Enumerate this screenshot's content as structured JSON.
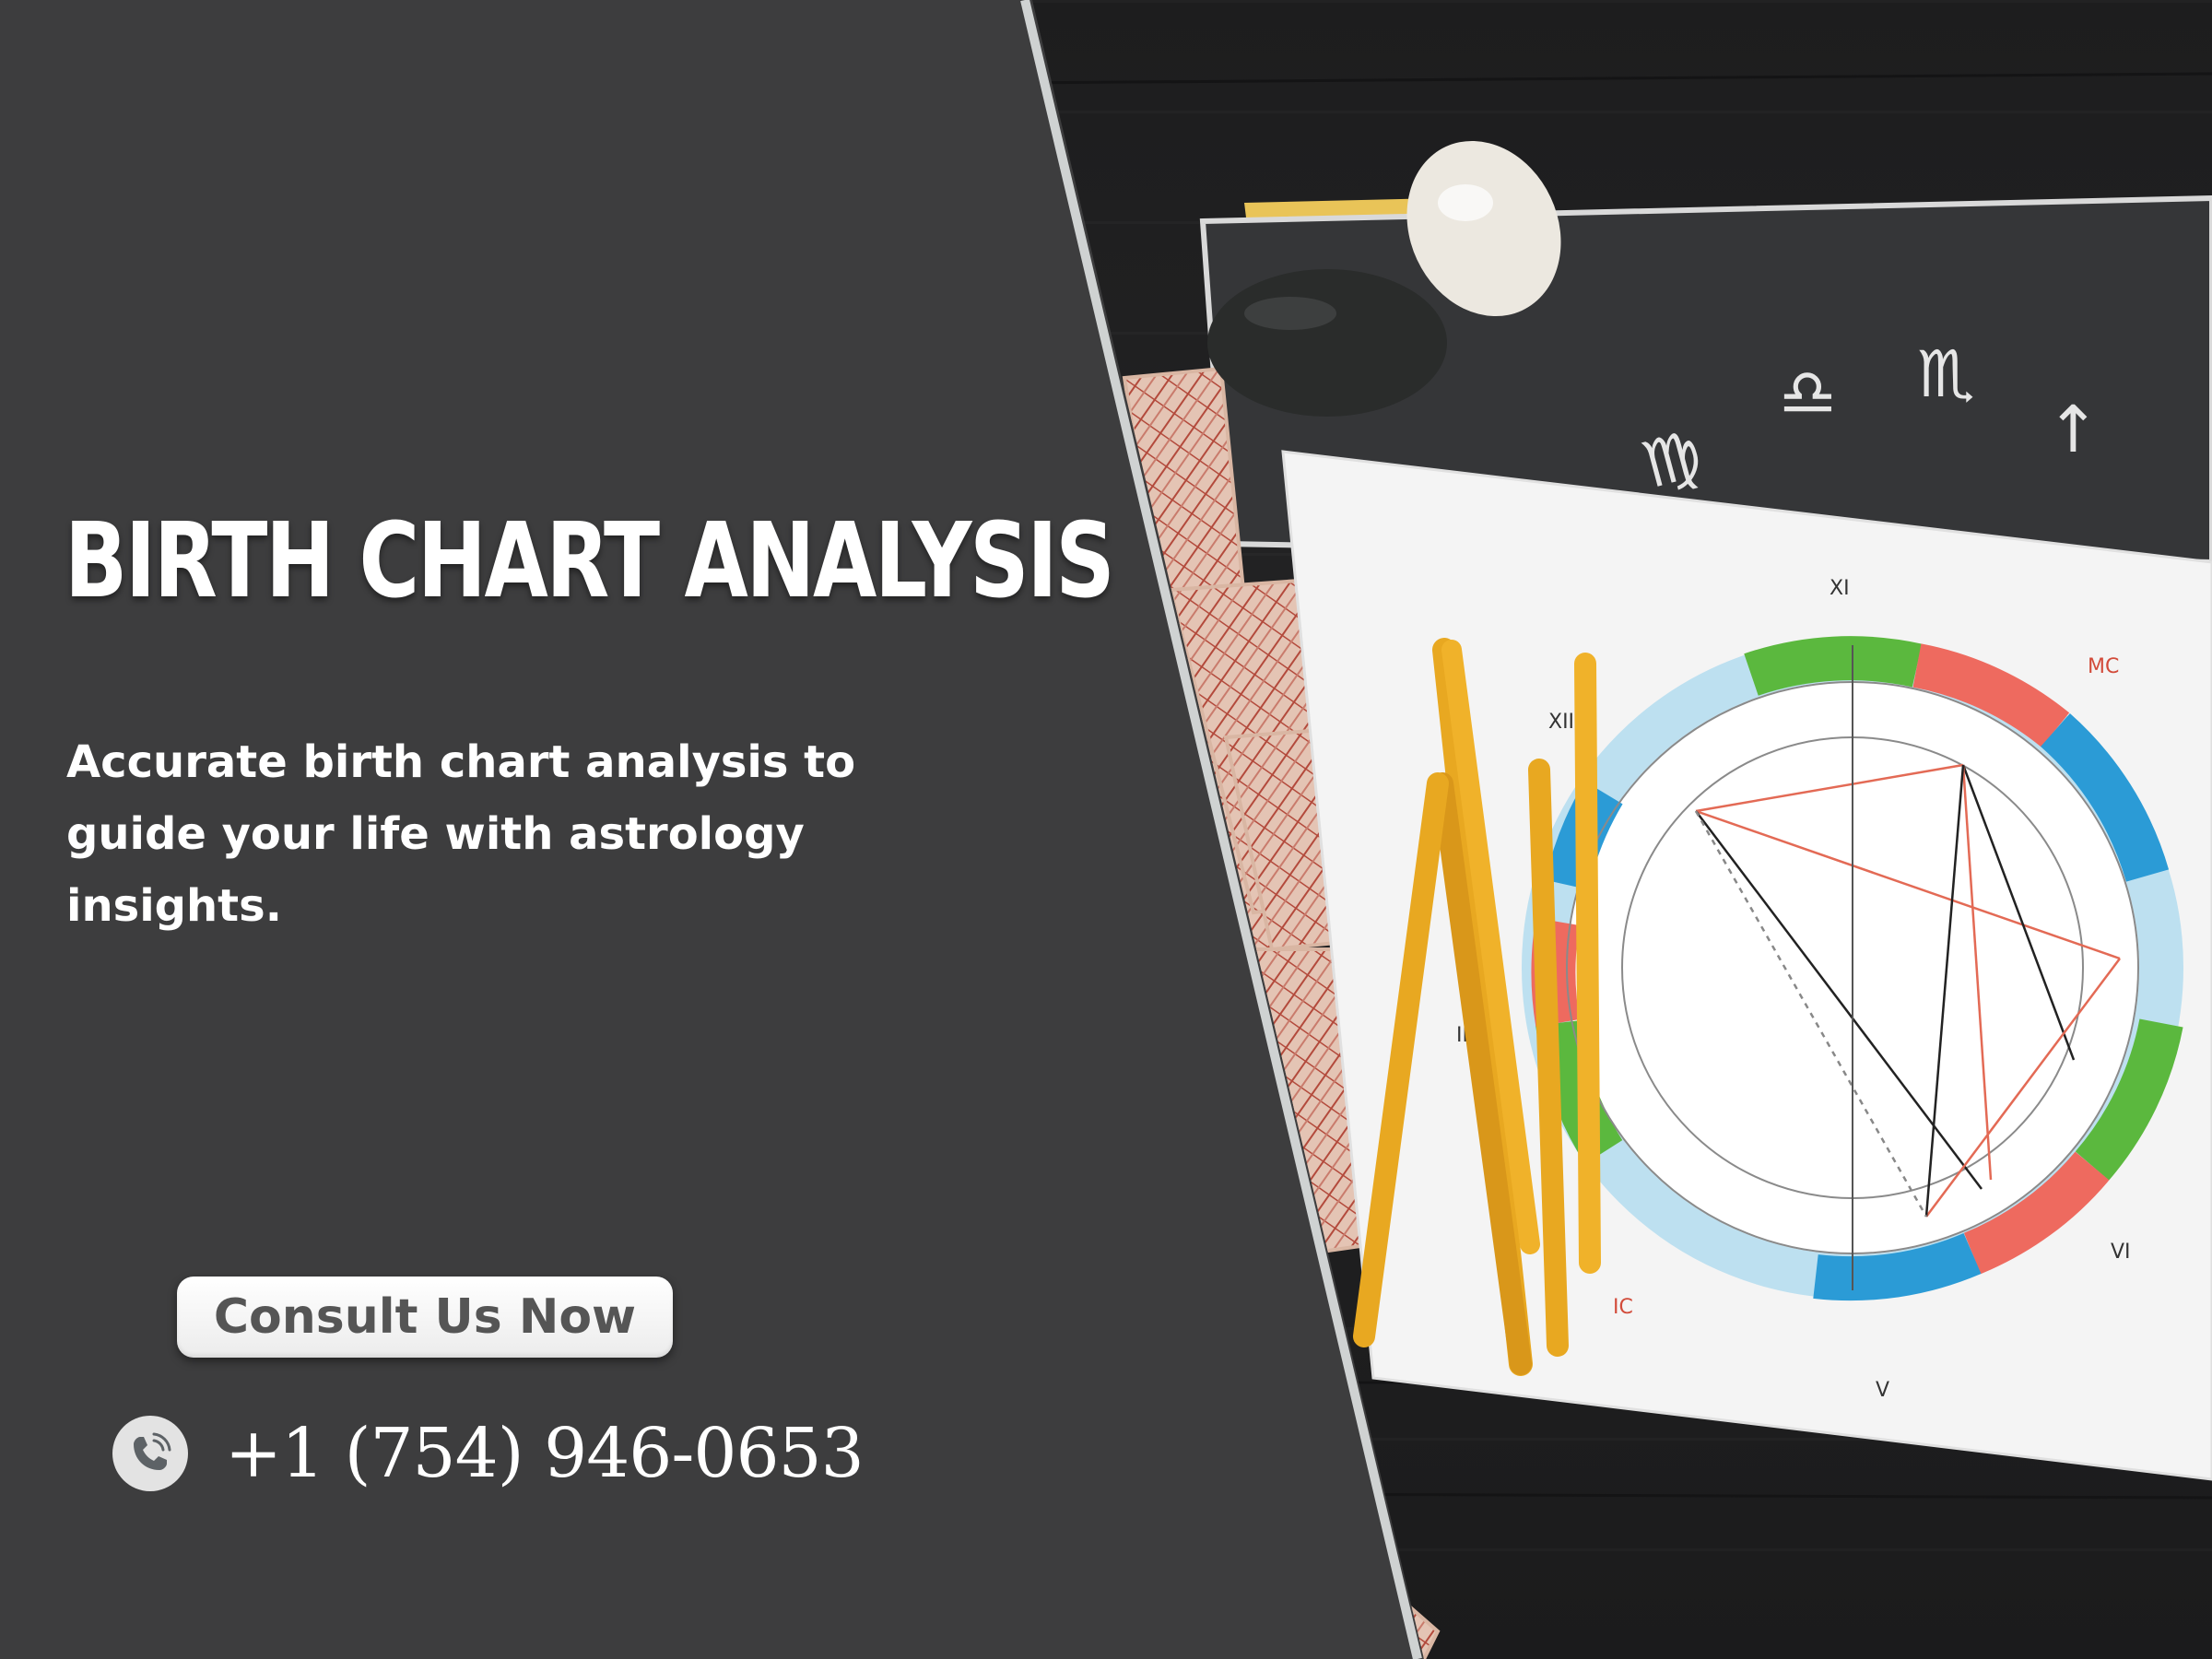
{
  "banner": {
    "title": "BIRTH CHART ANALYSIS",
    "subtitle": "Accurate birth chart analysis to guide your life with astrology insights.",
    "cta_label": "Consult Us Now",
    "phone_number": "+1 (754) 946-0653",
    "phone_icon": "phone-icon"
  },
  "photo": {
    "chart_labels": {
      "mc": "MC",
      "ic": "IC",
      "house_xi": "XI",
      "house_xii": "XII",
      "house_v": "V",
      "house_vi": "VI",
      "house_ii": "II"
    },
    "zodiac_glyphs": [
      "♍",
      "♎",
      "♏",
      "↑"
    ]
  },
  "colors": {
    "panel_bg": "#3d3d3e",
    "text": "#ffffff",
    "button_bg": "#ffffff",
    "button_text": "#555555",
    "candle": "#e8a821",
    "wheel_blue": "#2b9bd6",
    "wheel_green": "#5bb83e",
    "wheel_red": "#ee6a5f",
    "wheel_lightblue": "#bde0f0"
  }
}
